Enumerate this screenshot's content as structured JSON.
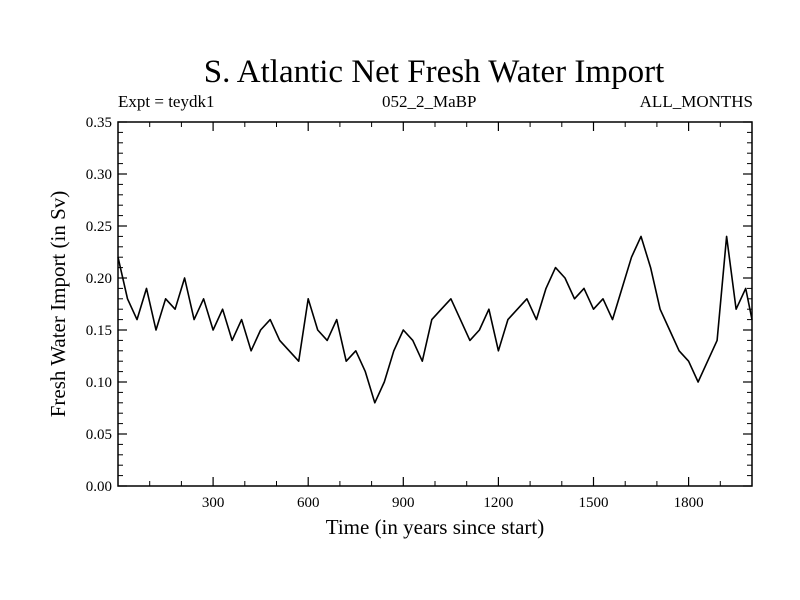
{
  "header": {
    "title": "S. Atlantic Net Fresh Water Import",
    "experiment": "Expt = teydk1",
    "run_label": "052_2_MaBP",
    "months": "ALL_MONTHS"
  },
  "chart_data": {
    "type": "line",
    "title": "S. Atlantic Net Fresh Water Import",
    "xlabel": "Time (in years since start)",
    "ylabel": "Fresh Water Import (in Sv)",
    "xlim": [
      0,
      2000
    ],
    "ylim": [
      0.0,
      0.35
    ],
    "xticks": [
      300,
      600,
      900,
      1200,
      1500,
      1800
    ],
    "xtick_labels": [
      "300",
      "600",
      "900",
      "1200",
      "1500",
      "1800"
    ],
    "yticks": [
      0.0,
      0.05,
      0.1,
      0.15,
      0.2,
      0.25,
      0.3,
      0.35
    ],
    "ytick_labels": [
      "0.00",
      "0.05",
      "0.10",
      "0.15",
      "0.20",
      "0.25",
      "0.30",
      "0.35"
    ],
    "line_color": "#000000",
    "series": [
      {
        "name": "Fresh Water Import",
        "x": [
          0,
          30,
          60,
          90,
          120,
          150,
          180,
          210,
          240,
          270,
          300,
          330,
          360,
          390,
          420,
          450,
          480,
          510,
          540,
          570,
          600,
          630,
          660,
          690,
          720,
          750,
          780,
          810,
          840,
          870,
          900,
          930,
          960,
          990,
          1020,
          1050,
          1080,
          1110,
          1140,
          1170,
          1200,
          1230,
          1260,
          1290,
          1320,
          1350,
          1380,
          1410,
          1440,
          1470,
          1500,
          1530,
          1560,
          1590,
          1620,
          1650,
          1680,
          1710,
          1740,
          1770,
          1800,
          1830,
          1860,
          1890,
          1920,
          1950,
          1980,
          2000
        ],
        "values": [
          0.22,
          0.18,
          0.16,
          0.19,
          0.15,
          0.18,
          0.17,
          0.2,
          0.16,
          0.18,
          0.15,
          0.17,
          0.14,
          0.16,
          0.13,
          0.15,
          0.16,
          0.14,
          0.13,
          0.12,
          0.18,
          0.15,
          0.14,
          0.16,
          0.12,
          0.13,
          0.11,
          0.08,
          0.1,
          0.13,
          0.15,
          0.14,
          0.12,
          0.16,
          0.17,
          0.18,
          0.16,
          0.14,
          0.15,
          0.17,
          0.13,
          0.16,
          0.17,
          0.18,
          0.16,
          0.19,
          0.21,
          0.2,
          0.18,
          0.19,
          0.17,
          0.18,
          0.16,
          0.19,
          0.22,
          0.24,
          0.21,
          0.17,
          0.15,
          0.13,
          0.12,
          0.1,
          0.12,
          0.14,
          0.24,
          0.17,
          0.19,
          0.16
        ]
      }
    ]
  }
}
